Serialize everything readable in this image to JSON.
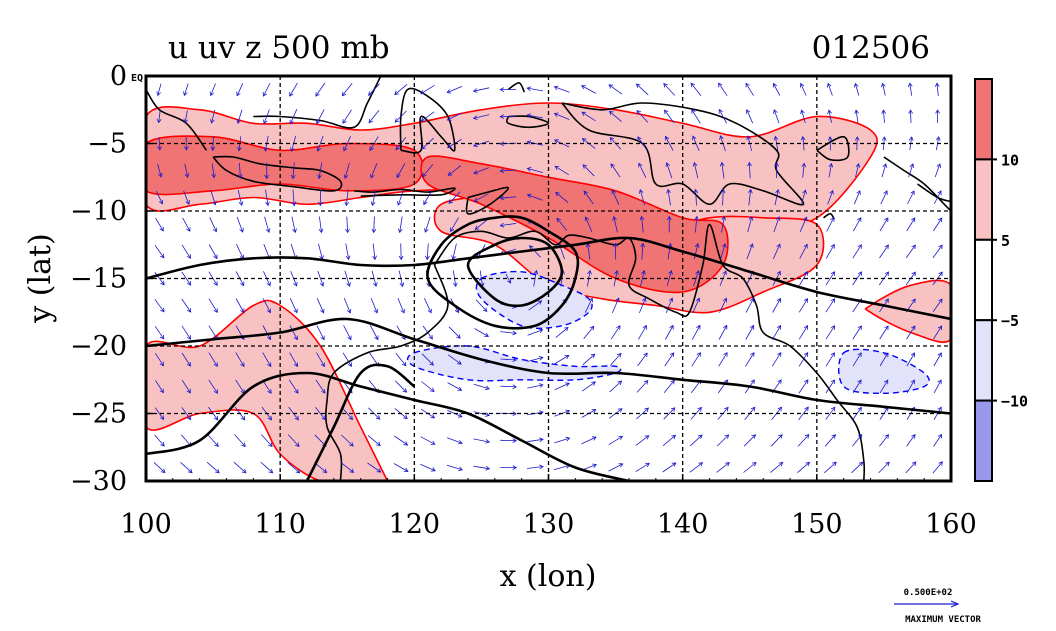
{
  "chart_data": {
    "type": "heatmap",
    "title_left": "u uv z 500 mb",
    "title_right": "012506",
    "xlabel": "x (lon)",
    "ylabel": "y (lat)",
    "xlim": [
      100,
      160
    ],
    "ylim": [
      -30,
      0
    ],
    "xticks": [
      100,
      110,
      120,
      130,
      140,
      150,
      160
    ],
    "yticks": [
      0,
      -5,
      -10,
      -15,
      -20,
      -25,
      -30
    ],
    "xtick_labels": [
      "100",
      "110",
      "120",
      "130",
      "140",
      "150",
      "160"
    ],
    "ytick_labels": [
      "0",
      "−5",
      "−10",
      "−15",
      "−20",
      "−25",
      "−30"
    ],
    "y0_suffix": "EQ",
    "grid": true,
    "colorbar": {
      "levels": [
        10,
        5,
        -5,
        -10
      ],
      "labels": [
        "10",
        "5",
        "−5",
        "−10"
      ],
      "colors": [
        "#f07474",
        "#f8c2c2",
        "#ffffff",
        "#e2e2fa",
        "#9898ec"
      ]
    },
    "colors": {
      "positive_contour": "#ff0000",
      "negative_contour": "#0000ff",
      "height_contour": "#000000",
      "vector": "#1a1acc",
      "coastline": "#000000"
    },
    "u_shaded_regions": [
      {
        "sign": "positive",
        "level": 5,
        "lon": [
          100,
          104,
          108,
          112,
          116,
          120,
          125,
          130,
          135,
          140,
          145,
          150,
          154
        ],
        "lat_north": [
          -3,
          -2.5,
          -3.5,
          -3.5,
          -4,
          -3.5,
          -2.5,
          -2,
          -2.5,
          -3.5,
          -4.5,
          -3,
          -4
        ],
        "lat_south": [
          -9.5,
          -9.5,
          -9,
          -9.5,
          -9,
          -8.5,
          -8.5,
          -9,
          -10,
          -11,
          -11.5,
          -10.5,
          -6
        ]
      },
      {
        "sign": "positive",
        "level": 10,
        "lon": [
          100,
          105,
          110,
          115,
          120
        ],
        "lat_north": [
          -5,
          -4.5,
          -5.5,
          -5,
          -5.5
        ],
        "lat_south": [
          -8.5,
          -8.5,
          -8,
          -8.5,
          -8
        ]
      },
      {
        "sign": "positive",
        "level": 10,
        "lon": [
          121,
          125,
          130,
          135,
          140,
          143
        ],
        "lat_north": [
          -6,
          -6.5,
          -7.5,
          -8.5,
          -10.5,
          -11
        ],
        "lat_south": [
          -8,
          -9.5,
          -12,
          -15,
          -16,
          -14
        ]
      },
      {
        "sign": "positive",
        "level": 5,
        "lon": [
          122,
          126,
          130,
          134,
          138,
          142,
          146,
          150
        ],
        "lat_north": [
          -9.5,
          -9,
          -10,
          -10.5,
          -11.5,
          -10.5,
          -10.5,
          -11
        ],
        "lat_south": [
          -11.5,
          -12.5,
          -15.5,
          -16.5,
          -17,
          -17.5,
          -16,
          -14
        ]
      },
      {
        "sign": "positive",
        "level": 5,
        "lon": [
          100,
          104,
          108,
          110,
          113,
          116,
          118
        ],
        "lat_north": [
          -20,
          -20,
          -17,
          -17,
          -20,
          -26,
          -30
        ],
        "lat_south": [
          -26,
          -25,
          -25,
          -28,
          -30,
          -30,
          -30
        ]
      },
      {
        "sign": "positive",
        "level": 5,
        "lon": [
          154,
          157,
          160
        ],
        "lat_north": [
          -17,
          -15.5,
          -15.5
        ],
        "lat_south": [
          -17.5,
          -19,
          -19.5
        ]
      },
      {
        "sign": "negative",
        "level": -5,
        "lon": [
          125,
          128,
          131,
          133
        ],
        "lat_north": [
          -15,
          -14.5,
          -15.5,
          -16.5
        ],
        "lat_south": [
          -16.5,
          -18.5,
          -18.5,
          -17.5
        ]
      },
      {
        "sign": "negative",
        "level": -5,
        "lon": [
          120,
          124,
          128,
          132,
          135
        ],
        "lat_north": [
          -20.5,
          -20,
          -21,
          -21.5,
          -21.5
        ],
        "lat_south": [
          -21.5,
          -22.5,
          -22.5,
          -22.5,
          -22
        ]
      },
      {
        "sign": "negative",
        "level": -5,
        "lon": [
          152,
          155,
          158
        ],
        "lat_north": [
          -20.5,
          -20.5,
          -22
        ],
        "lat_south": [
          -23,
          -23.5,
          -23
        ]
      }
    ],
    "z_contours": [
      {
        "lon": [
          100,
          104,
          108,
          112,
          116,
          120,
          124,
          128,
          132,
          136,
          140,
          145,
          150,
          155,
          160
        ],
        "lat": [
          -15,
          -14,
          -13.5,
          -13.5,
          -14,
          -14,
          -13.5,
          -13,
          -12.5,
          -12,
          -13,
          -14.5,
          -16,
          -17,
          -18
        ]
      },
      {
        "lon": [
          100,
          105,
          110,
          115,
          120,
          125,
          130,
          135,
          140,
          145,
          150,
          155,
          160
        ],
        "lat": [
          -20,
          -19.5,
          -19,
          -18,
          -19.5,
          -21,
          -22,
          -22,
          -22.5,
          -23,
          -24,
          -24.5,
          -25
        ]
      },
      {
        "lon": [
          100,
          104,
          108,
          112,
          116,
          120,
          124,
          128,
          132,
          136
        ],
        "lat": [
          -28,
          -27,
          -23,
          -22,
          -23,
          -24,
          -25,
          -27,
          -29,
          -30
        ]
      },
      {
        "lon": [
          112,
          114,
          116,
          118,
          120
        ],
        "lat": [
          -30,
          -26,
          -22,
          -21.5,
          -23
        ]
      },
      {
        "lon": [
          121,
          122,
          124,
          126,
          128,
          130,
          132,
          132,
          131,
          129,
          126,
          123,
          121
        ],
        "lat": [
          -15,
          -12.5,
          -11,
          -10.5,
          -10.5,
          -11.5,
          -13,
          -15,
          -17,
          -18.5,
          -18.5,
          -17,
          -15
        ]
      },
      {
        "lon": [
          124,
          126,
          128,
          130,
          131,
          130,
          128,
          126,
          124
        ],
        "lat": [
          -14,
          -12.5,
          -12,
          -12.5,
          -14.5,
          -16,
          -17,
          -16.5,
          -14
        ]
      }
    ],
    "vector_field": {
      "component": "uv",
      "reference_label": "0.500E+02",
      "reference_caption": "MAXIMUM VECTOR",
      "lon": [
        101,
        103,
        105,
        107,
        109,
        111,
        113,
        115,
        117,
        119,
        121,
        123,
        125,
        127,
        129,
        131,
        133,
        135,
        137,
        139,
        141,
        143,
        145,
        147,
        149,
        151,
        153,
        155,
        157,
        159
      ],
      "lat": [
        -1,
        -3,
        -5,
        -7,
        -9,
        -11,
        -13,
        -15,
        -17,
        -19,
        -21,
        -23,
        -25,
        -27,
        -29
      ]
    }
  }
}
